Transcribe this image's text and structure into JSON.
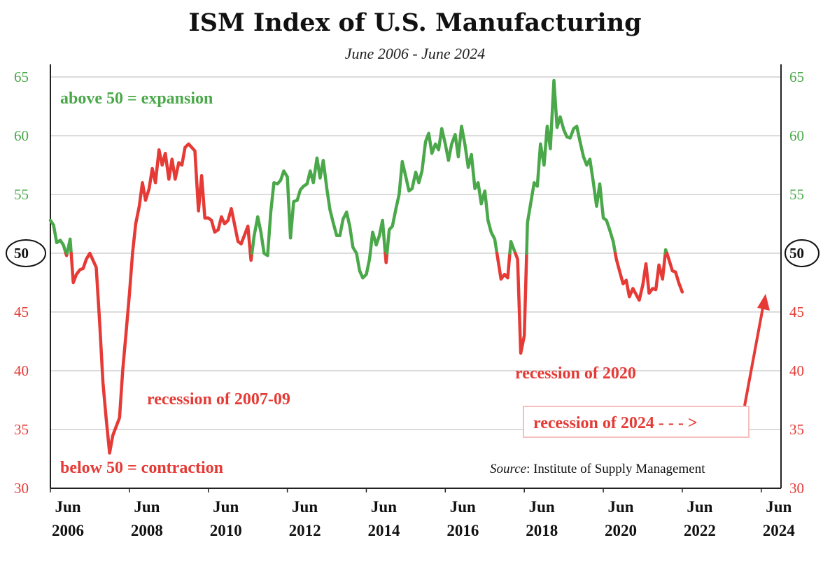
{
  "title": "ISM Index of U.S. Manufacturing",
  "subtitle": "June 2006 - June 2024",
  "colors": {
    "expansion": "#4aa84a",
    "contraction": "#e53a35",
    "grid": "#d0d0d0",
    "axis": "#222222"
  },
  "annotations": {
    "expansion_note": "above 50 = expansion",
    "contraction_note": "below 50 = contraction",
    "recession_2007": "recession of 2007-09",
    "recession_2020": "recession of 2020",
    "recession_2024": "recession of 2024 - - - >",
    "source_label": "Source",
    "source_text": ": Institute of Supply Management"
  },
  "chart_data": {
    "type": "line",
    "title": "ISM Index of U.S. Manufacturing",
    "subtitle": "June 2006 - June 2024",
    "xlabel": "",
    "ylabel": "",
    "ylim": [
      30,
      65
    ],
    "xlim": [
      2006.42,
      2024.92
    ],
    "y_ticks": [
      30,
      35,
      40,
      45,
      50,
      55,
      60,
      65
    ],
    "x_ticks": [
      {
        "top": "Jun",
        "bottom": "2006",
        "x": 2006.42
      },
      {
        "top": "Jun",
        "bottom": "2008",
        "x": 2008.42
      },
      {
        "top": "Jun",
        "bottom": "2010",
        "x": 2010.42
      },
      {
        "top": "Jun",
        "bottom": "2012",
        "x": 2012.42
      },
      {
        "top": "Jun",
        "bottom": "2014",
        "x": 2014.42
      },
      {
        "top": "Jun",
        "bottom": "2016",
        "x": 2016.42
      },
      {
        "top": "Jun",
        "bottom": "2018",
        "x": 2018.42
      },
      {
        "top": "Jun",
        "bottom": "2020",
        "x": 2020.42
      },
      {
        "top": "Jun",
        "bottom": "2022",
        "x": 2022.42
      },
      {
        "top": "Jun",
        "bottom": "2024",
        "x": 2024.42
      }
    ],
    "threshold": 50,
    "grid": true,
    "series": [
      {
        "points": [
          [
            2006.42,
            52.8
          ],
          [
            2006.5,
            52.4
          ],
          [
            2006.58,
            50.9
          ],
          [
            2006.67,
            51.1
          ],
          [
            2006.75,
            50.7
          ],
          [
            2006.83,
            49.8
          ],
          [
            2006.92,
            51.2
          ],
          [
            2007.0,
            47.5
          ],
          [
            2007.08,
            48.2
          ],
          [
            2007.17,
            48.6
          ],
          [
            2007.25,
            48.7
          ],
          [
            2007.33,
            49.5
          ],
          [
            2007.42,
            50.0
          ],
          [
            2007.5,
            49.4
          ],
          [
            2007.58,
            48.8
          ],
          [
            2007.67,
            44.0
          ],
          [
            2007.75,
            39.0
          ],
          [
            2007.83,
            36.0
          ],
          [
            2007.92,
            33.0
          ],
          [
            2008.0,
            34.5
          ],
          [
            2008.08,
            35.2
          ],
          [
            2008.17,
            36.0
          ],
          [
            2008.25,
            40.0
          ],
          [
            2008.33,
            43.0
          ],
          [
            2008.42,
            46.5
          ],
          [
            2008.5,
            50.0
          ],
          [
            2008.58,
            52.5
          ],
          [
            2008.67,
            54.0
          ],
          [
            2008.75,
            56.0
          ],
          [
            2008.83,
            54.5
          ],
          [
            2008.92,
            55.5
          ],
          [
            2009.0,
            57.2
          ],
          [
            2009.08,
            56.0
          ],
          [
            2009.17,
            58.8
          ],
          [
            2009.25,
            57.5
          ],
          [
            2009.33,
            58.5
          ],
          [
            2009.42,
            56.3
          ],
          [
            2009.5,
            58.0
          ],
          [
            2009.58,
            56.3
          ],
          [
            2009.67,
            57.7
          ],
          [
            2009.75,
            57.5
          ],
          [
            2009.83,
            59.0
          ],
          [
            2009.92,
            59.3
          ],
          [
            2010.0,
            59.0
          ],
          [
            2010.08,
            58.7
          ],
          [
            2010.17,
            53.6
          ],
          [
            2010.25,
            56.6
          ],
          [
            2010.33,
            53.0
          ],
          [
            2010.42,
            53.0
          ],
          [
            2010.5,
            52.8
          ],
          [
            2010.58,
            51.8
          ],
          [
            2010.67,
            52.0
          ],
          [
            2010.75,
            53.1
          ],
          [
            2010.83,
            52.5
          ],
          [
            2010.92,
            52.8
          ],
          [
            2011.0,
            53.8
          ],
          [
            2011.08,
            52.5
          ],
          [
            2011.17,
            51.0
          ],
          [
            2011.25,
            50.8
          ],
          [
            2011.33,
            51.5
          ],
          [
            2011.42,
            52.3
          ],
          [
            2011.5,
            49.4
          ],
          [
            2011.58,
            51.5
          ],
          [
            2011.67,
            53.1
          ],
          [
            2011.75,
            51.8
          ],
          [
            2011.83,
            50.0
          ],
          [
            2011.92,
            49.8
          ],
          [
            2012.0,
            53.5
          ],
          [
            2012.08,
            56.0
          ],
          [
            2012.17,
            55.9
          ],
          [
            2012.25,
            56.2
          ],
          [
            2012.33,
            57.0
          ],
          [
            2012.42,
            56.5
          ],
          [
            2012.5,
            51.3
          ],
          [
            2012.58,
            54.4
          ],
          [
            2012.67,
            54.5
          ],
          [
            2012.75,
            55.4
          ],
          [
            2012.83,
            55.7
          ],
          [
            2012.92,
            55.9
          ],
          [
            2013.0,
            57.0
          ],
          [
            2013.08,
            56.0
          ],
          [
            2013.17,
            58.1
          ],
          [
            2013.25,
            56.4
          ],
          [
            2013.33,
            57.9
          ],
          [
            2013.42,
            55.5
          ],
          [
            2013.5,
            53.7
          ],
          [
            2013.58,
            52.6
          ],
          [
            2013.67,
            51.5
          ],
          [
            2013.75,
            51.5
          ],
          [
            2013.83,
            52.9
          ],
          [
            2013.92,
            53.5
          ],
          [
            2014.0,
            52.3
          ],
          [
            2014.08,
            50.5
          ],
          [
            2014.17,
            50.0
          ],
          [
            2014.25,
            48.5
          ],
          [
            2014.33,
            47.9
          ],
          [
            2014.42,
            48.2
          ],
          [
            2014.5,
            49.5
          ],
          [
            2014.58,
            51.8
          ],
          [
            2014.67,
            50.7
          ],
          [
            2014.75,
            51.5
          ],
          [
            2014.83,
            52.8
          ],
          [
            2014.92,
            49.2
          ],
          [
            2015.0,
            52.0
          ],
          [
            2015.08,
            52.3
          ],
          [
            2015.17,
            53.8
          ],
          [
            2015.25,
            55.0
          ],
          [
            2015.33,
            57.8
          ],
          [
            2015.42,
            56.5
          ],
          [
            2015.5,
            55.3
          ],
          [
            2015.58,
            55.5
          ],
          [
            2015.67,
            56.9
          ],
          [
            2015.75,
            56.0
          ],
          [
            2015.83,
            57.0
          ],
          [
            2015.92,
            59.5
          ],
          [
            2016.0,
            60.2
          ],
          [
            2016.08,
            58.5
          ],
          [
            2016.17,
            59.3
          ],
          [
            2016.25,
            58.8
          ],
          [
            2016.33,
            60.6
          ],
          [
            2016.42,
            59.3
          ],
          [
            2016.5,
            57.9
          ],
          [
            2016.58,
            59.3
          ],
          [
            2016.67,
            60.1
          ],
          [
            2016.75,
            58.2
          ],
          [
            2016.83,
            60.8
          ],
          [
            2016.92,
            59.2
          ],
          [
            2017.0,
            57.3
          ],
          [
            2017.08,
            58.4
          ],
          [
            2017.17,
            55.5
          ],
          [
            2017.25,
            56.0
          ],
          [
            2017.33,
            54.2
          ],
          [
            2017.42,
            55.3
          ],
          [
            2017.5,
            52.8
          ],
          [
            2017.58,
            51.8
          ],
          [
            2017.67,
            51.2
          ],
          [
            2017.75,
            49.5
          ],
          [
            2017.83,
            47.8
          ],
          [
            2017.92,
            48.2
          ],
          [
            2018.0,
            47.9
          ],
          [
            2018.08,
            51.0
          ],
          [
            2018.17,
            50.2
          ],
          [
            2018.25,
            49.5
          ],
          [
            2018.33,
            41.5
          ],
          [
            2018.42,
            43.0
          ],
          [
            2018.5,
            52.6
          ],
          [
            2018.58,
            54.2
          ],
          [
            2018.67,
            56.0
          ],
          [
            2018.75,
            55.7
          ],
          [
            2018.83,
            59.3
          ],
          [
            2018.92,
            57.5
          ],
          [
            2019.0,
            60.8
          ],
          [
            2019.08,
            58.9
          ],
          [
            2019.17,
            64.7
          ],
          [
            2019.25,
            60.7
          ],
          [
            2019.33,
            61.6
          ],
          [
            2019.42,
            60.5
          ],
          [
            2019.5,
            59.9
          ],
          [
            2019.58,
            59.8
          ],
          [
            2019.67,
            60.6
          ],
          [
            2019.75,
            60.8
          ],
          [
            2019.83,
            59.5
          ],
          [
            2019.92,
            58.2
          ],
          [
            2020.0,
            57.5
          ],
          [
            2020.08,
            58.0
          ],
          [
            2020.17,
            56.0
          ],
          [
            2020.25,
            54.0
          ],
          [
            2020.33,
            55.9
          ],
          [
            2020.42,
            53.0
          ],
          [
            2020.5,
            52.8
          ],
          [
            2020.58,
            52.0
          ],
          [
            2020.67,
            51.0
          ],
          [
            2020.75,
            49.5
          ],
          [
            2020.83,
            48.5
          ],
          [
            2020.92,
            47.4
          ],
          [
            2021.0,
            47.7
          ],
          [
            2021.08,
            46.3
          ],
          [
            2021.17,
            47.0
          ],
          [
            2021.25,
            46.5
          ],
          [
            2021.33,
            46.0
          ],
          [
            2021.42,
            47.3
          ],
          [
            2021.5,
            49.1
          ],
          [
            2021.58,
            46.6
          ],
          [
            2021.67,
            47.0
          ],
          [
            2021.75,
            46.9
          ],
          [
            2021.83,
            49.0
          ],
          [
            2021.92,
            47.8
          ],
          [
            2022.0,
            50.3
          ],
          [
            2022.08,
            49.5
          ],
          [
            2022.17,
            48.5
          ],
          [
            2022.25,
            48.4
          ],
          [
            2022.33,
            47.5
          ],
          [
            2022.42,
            46.7
          ]
        ]
      }
    ]
  }
}
